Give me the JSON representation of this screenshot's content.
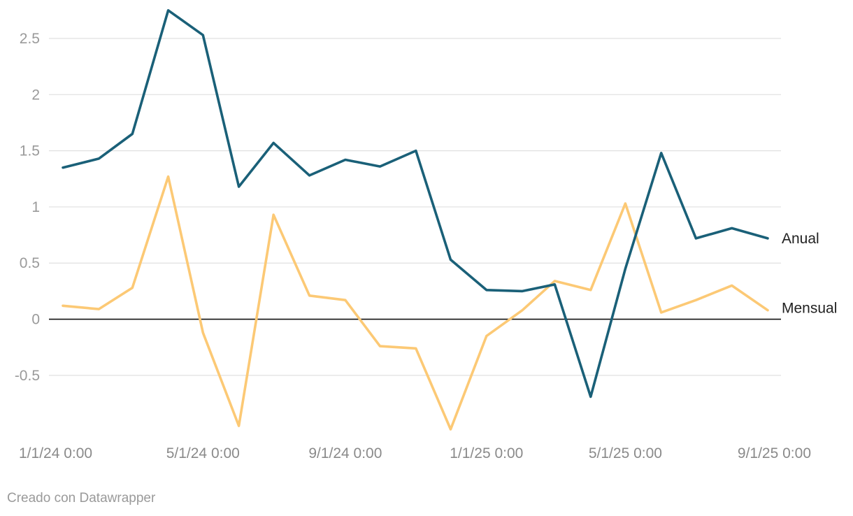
{
  "credit": "Creado con Datawrapper",
  "chart_data": {
    "type": "line",
    "title": "",
    "xlabel": "",
    "ylabel": "",
    "x": [
      "2024-01-01",
      "2024-02-01",
      "2024-03-01",
      "2024-04-01",
      "2024-05-01",
      "2024-06-01",
      "2024-07-01",
      "2024-08-01",
      "2024-09-01",
      "2024-10-01",
      "2024-11-01",
      "2024-12-01",
      "2025-01-01",
      "2025-02-01",
      "2025-03-01",
      "2025-04-01",
      "2025-05-01",
      "2025-06-01",
      "2025-07-01",
      "2025-08-01",
      "2025-09-01"
    ],
    "x_tick_labels": [
      {
        "x": "2024-01-01",
        "label": "1/1/24 0:00"
      },
      {
        "x": "2024-05-01",
        "label": "5/1/24 0:00"
      },
      {
        "x": "2024-09-01",
        "label": "9/1/24 0:00"
      },
      {
        "x": "2025-01-01",
        "label": "1/1/25 0:00"
      },
      {
        "x": "2025-05-01",
        "label": "5/1/25 0:00"
      },
      {
        "x": "2025-09-01",
        "label": "9/1/25 0:00"
      }
    ],
    "y_ticks": [
      {
        "value": 2.5,
        "label": "2.5"
      },
      {
        "value": 2,
        "label": "2"
      },
      {
        "value": 1.5,
        "label": "1.5"
      },
      {
        "value": 1,
        "label": "1"
      },
      {
        "value": 0.5,
        "label": "0.5"
      },
      {
        "value": 0,
        "label": "0"
      },
      {
        "value": -0.5,
        "label": "-0.5"
      }
    ],
    "ylim": [
      -1.03,
      2.78
    ],
    "grid": true,
    "series": [
      {
        "name": "Anual",
        "color": "#1a6078",
        "values": [
          1.35,
          1.43,
          1.65,
          2.75,
          2.53,
          1.18,
          1.57,
          1.28,
          1.42,
          1.36,
          1.5,
          0.53,
          0.26,
          0.25,
          0.31,
          -0.69,
          0.45,
          1.48,
          0.72,
          0.81,
          0.72
        ]
      },
      {
        "name": "Mensual",
        "color": "#fcc975",
        "values": [
          0.12,
          0.09,
          0.28,
          1.27,
          -0.12,
          -0.95,
          0.93,
          0.21,
          0.17,
          -0.24,
          -0.26,
          -0.98,
          -0.15,
          0.08,
          0.34,
          0.26,
          1.03,
          0.06,
          0.17,
          0.3,
          0.08
        ]
      }
    ]
  }
}
